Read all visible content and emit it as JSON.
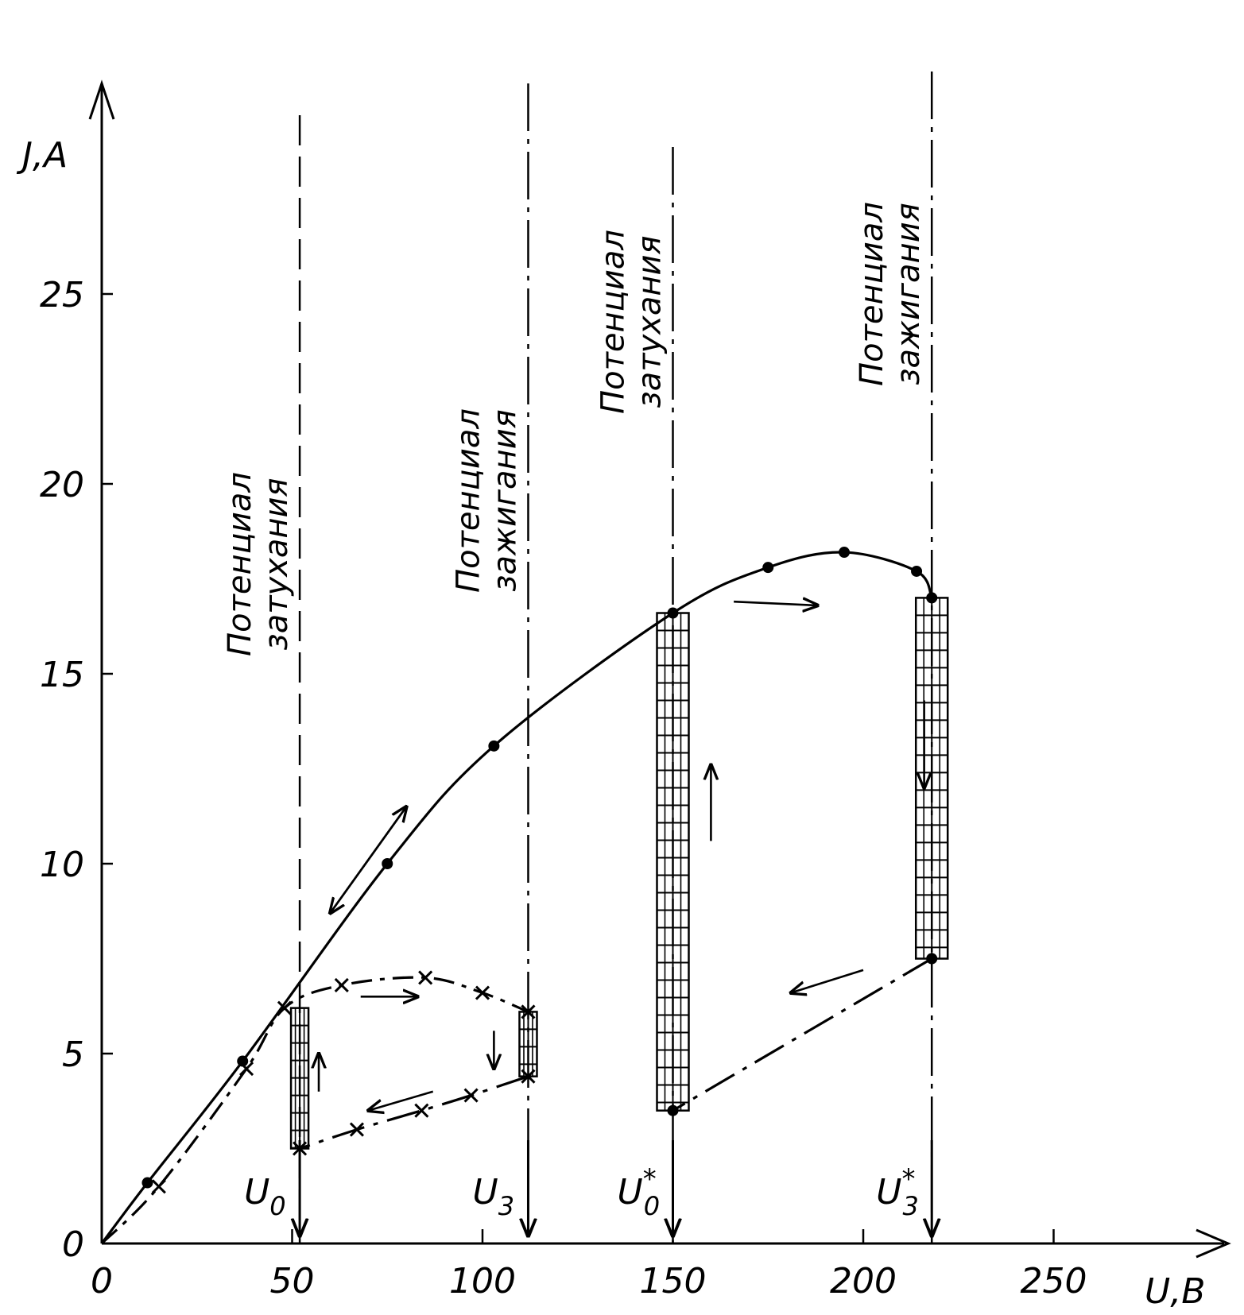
{
  "chart_data": {
    "type": "line",
    "xlabel": "U,B",
    "ylabel": "J,A",
    "xlim": [
      0,
      290
    ],
    "ylim": [
      0,
      30
    ],
    "x_ticks": [
      "0",
      "50",
      "100",
      "150",
      "200",
      "250"
    ],
    "y_ticks": [
      "0",
      "5",
      "10",
      "15",
      "20",
      "25"
    ],
    "x_tick_values": [
      0,
      50,
      100,
      150,
      200,
      250
    ],
    "y_tick_values": [
      0,
      5,
      10,
      15,
      20,
      25
    ],
    "grid": false,
    "series": [
      {
        "marker": "dot",
        "points": [
          [
            0,
            0
          ],
          [
            12,
            1.6
          ],
          [
            37,
            4.8
          ],
          [
            75,
            10
          ],
          [
            103,
            13.1
          ],
          [
            150,
            16.6
          ],
          [
            175,
            17.8
          ],
          [
            195,
            18.2
          ],
          [
            214,
            17.7
          ],
          [
            218,
            17
          ]
        ],
        "lower_branch": [
          [
            218,
            7.5
          ],
          [
            150,
            3.5
          ]
        ],
        "jumps": [
          [
            150,
            3.5,
            16.6
          ],
          [
            218,
            17,
            7.5
          ]
        ]
      },
      {
        "marker": "cross",
        "points": [
          [
            0,
            0
          ],
          [
            15,
            1.5
          ],
          [
            38,
            4.6
          ],
          [
            48,
            6.2
          ],
          [
            63,
            6.8
          ],
          [
            85,
            7
          ],
          [
            100,
            6.6
          ],
          [
            112,
            6.1
          ]
        ],
        "lower_branch": [
          [
            112,
            4.4
          ],
          [
            97,
            3.9
          ],
          [
            84,
            3.5
          ],
          [
            67,
            3
          ],
          [
            52,
            2.5
          ]
        ],
        "jumps": [
          [
            52,
            2.5,
            6.2
          ],
          [
            112,
            6.1,
            4.4
          ]
        ]
      }
    ],
    "vertical_markers": [
      {
        "x": 52,
        "label": "U",
        "sub": "0",
        "sup": "",
        "text_line1": "Потенциал",
        "text_line2": "затухания"
      },
      {
        "x": 112,
        "label": "U",
        "sub": "3",
        "sup": "",
        "text_line1": "Потенциал",
        "text_line2": "зажигания"
      },
      {
        "x": 150,
        "label": "U",
        "sub": "0",
        "sup": "*",
        "text_line1": "Потенциал",
        "text_line2": "затухания"
      },
      {
        "x": 218,
        "label": "U",
        "sub": "3",
        "sup": "*",
        "text_line1": "Потенциал",
        "text_line2": "зажигания"
      }
    ]
  }
}
